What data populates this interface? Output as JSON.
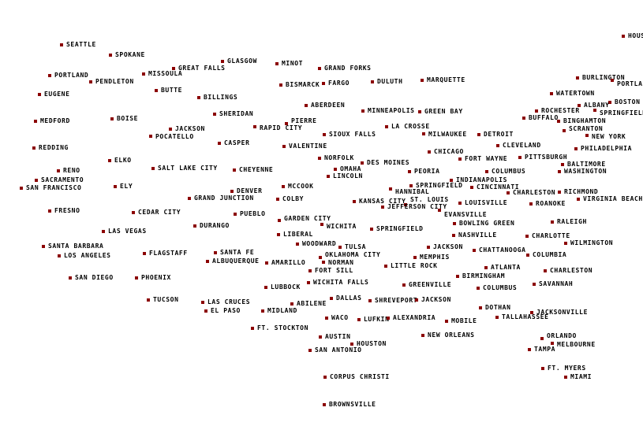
{
  "colors": {
    "marker": "#8b0000",
    "label": "#000000",
    "background": "#ffffff"
  },
  "cities": [
    "HOUSTON",
    "SEATTLE",
    "SPOKANE",
    "GLASGOW",
    "MINOT",
    "GREAT FALLS",
    "GRAND FORKS",
    "PORTLAND",
    "MISSOULA",
    "PENDLETON",
    "BISMARCK",
    "FARGO",
    "DULUTH",
    "MARQUETTE",
    "BURLINGTON",
    "PORTLAND",
    "EUGENE",
    "BUTTE",
    "BILLINGS",
    "WATERTOWN",
    "BOSTON",
    "ALBANY",
    "SPRINGFIELD",
    "ROCHESTER",
    "ABERDEEN",
    "MINNEAPOLIS",
    "GREEN BAY",
    "SHERIDAN",
    "BUFFALO",
    "BINGHAMTON",
    "MEDFORD",
    "BOISE",
    "RAPID CITY",
    "PIERRE",
    "LA CROSSE",
    "JACKSON",
    "POCATELLO",
    "SIOUX FALLS",
    "MILWAUKEE",
    "DETROIT",
    "SCRANTON",
    "NEW YORK",
    "CASPER",
    "VALENTINE",
    "CLEVELAND",
    "REDDING",
    "PHILADELPHIA",
    "CHICAGO",
    "NORFOLK",
    "FORT WAYNE",
    "PITTSBURGH",
    "ELKO",
    "DES MOINES",
    "OMAHA",
    "SALT LAKE CITY",
    "CHEYENNE",
    "BALTIMORE",
    "RENO",
    "PEORIA",
    "COLUMBUS",
    "WASHINGTON",
    "LINCOLN",
    "SACRAMENTO",
    "INDIANAPOLIS",
    "ELY",
    "MCCOOK",
    "SAN FRANCISCO",
    "SPRINGFIELD",
    "HANNIBAL",
    "CINCINNATI",
    "DENVER",
    "CHARLESTON",
    "RICHMOND",
    "COLBY",
    "GRAND JUNCTION",
    "KANSAS CITY",
    "ST. LOUIS",
    "JEFFERSON CITY",
    "LOUISVILLE",
    "VIRGINIA BEACH",
    "ROANOKE",
    "EVANSVILLE",
    "FRESNO",
    "CEDAR CITY",
    "PUEBLO",
    "GARDEN CITY",
    "WICHITA",
    "BOWLING GREEN",
    "RALEIGH",
    "DURANGO",
    "LAS VEGAS",
    "SPRINGFIELD",
    "LIBERAL",
    "NASHVILLE",
    "CHARLOTTE",
    "WOODWARD",
    "TULSA",
    "WILMINGTON",
    "SANTA BARBARA",
    "JACKSON",
    "CHATTANOOGA",
    "SANTA FE",
    "FLAGSTAFF",
    "LOS ANGELES",
    "OKLAHOMA CITY",
    "MEMPHIS",
    "COLUMBIA",
    "ALBUQUERQUE",
    "NORMAN",
    "AMARILLO",
    "LITTLE ROCK",
    "ATLANTA",
    "FORT SILL",
    "CHARLESTON",
    "SAN DIEGO",
    "PHOENIX",
    "BIRMINGHAM",
    "WICHITA FALLS",
    "GREENVILLE",
    "COLUMBUS",
    "SAVANNAH",
    "LUBBOCK",
    "DALLAS",
    "SHREVEPORT",
    "JACKSON",
    "TUCSON",
    "LAS CRUCES",
    "ABILENE",
    "DOTHAN",
    "EL PASO",
    "MIDLAND",
    "JACKSONVILLE",
    "WACO",
    "LUFKIN",
    "ALEXANDRIA",
    "MOBILE",
    "TALLAHASSEE",
    "FT. STOCKTON",
    "AUSTIN",
    "NEW ORLEANS",
    "ORLANDO",
    "HOUSTON",
    "MELBOURNE",
    "SAN ANTONIO",
    "TAMPA",
    "FT. MYERS",
    "MIAMI",
    "CORPUS CHRISTI",
    "BROWNSVILLE"
  ]
}
